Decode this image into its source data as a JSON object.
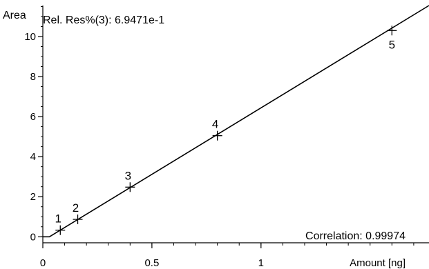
{
  "chart_data": {
    "type": "scatter",
    "ylabel": "Area",
    "xlabel": "Amount [ng]",
    "relres_text": "Rel. Res%(3): 6.9471e-1",
    "correlation_text": "Correlation: 0.99974",
    "xlim": [
      0,
      1.77
    ],
    "ylim": [
      -0.3,
      11.55
    ],
    "x_ticks": [
      0,
      0.5,
      1
    ],
    "x_tick_labels": [
      "0",
      "0.5",
      "1"
    ],
    "y_ticks": [
      0,
      2,
      4,
      6,
      8,
      10
    ],
    "y_tick_labels": [
      "0",
      "2",
      "4",
      "6",
      "8",
      "10"
    ],
    "points": [
      {
        "label": "1",
        "x": 0.08,
        "y": 0.33
      },
      {
        "label": "2",
        "x": 0.16,
        "y": 0.87
      },
      {
        "label": "3",
        "x": 0.4,
        "y": 2.48
      },
      {
        "label": "4",
        "x": 0.8,
        "y": 5.05
      },
      {
        "label": "5",
        "x": 1.6,
        "y": 10.3
      }
    ],
    "fit_line": {
      "x": [
        0,
        0.03,
        1.77
      ],
      "y": [
        0,
        0,
        11.55
      ]
    },
    "colors": {
      "line": "#000000",
      "marker": "#000000"
    }
  }
}
